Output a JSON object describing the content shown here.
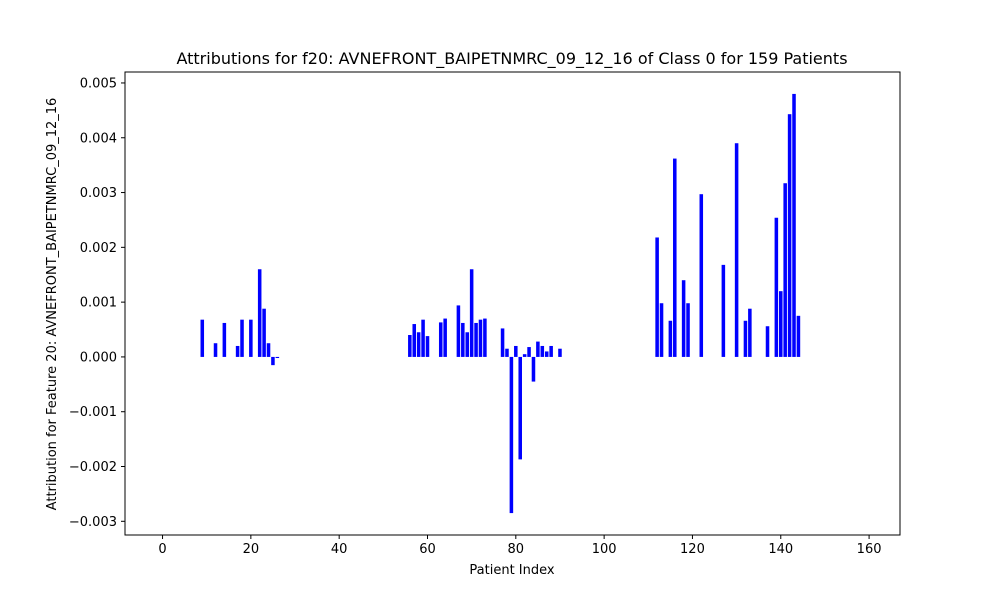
{
  "chart_data": {
    "type": "bar",
    "title": "Attributions for f20: AVNEFRONT_BAIPETNMRC_09_12_16 of Class 0 for 159 Patients",
    "xlabel": "Patient Index",
    "ylabel": "Attribution for Feature 20: AVNEFRONT_BAIPETNMRC_09_12_16",
    "xlim": [
      -8.5,
      167
    ],
    "ylim": [
      -0.00325,
      0.0052
    ],
    "xticks": [
      0,
      20,
      40,
      60,
      80,
      100,
      120,
      140,
      160
    ],
    "xtick_labels": [
      "0",
      "20",
      "40",
      "60",
      "80",
      "100",
      "120",
      "140",
      "160"
    ],
    "yticks": [
      -0.003,
      -0.002,
      -0.001,
      0.0,
      0.001,
      0.002,
      0.003,
      0.004,
      0.005
    ],
    "ytick_labels": [
      "−0.003",
      "−0.002",
      "−0.001",
      "0.000",
      "0.001",
      "0.002",
      "0.003",
      "0.004",
      "0.005"
    ],
    "bar_color": "#0000ff",
    "grid": false,
    "points": [
      [
        9,
        0.00068
      ],
      [
        12,
        0.00025
      ],
      [
        14,
        0.00062
      ],
      [
        17,
        0.0002
      ],
      [
        18,
        0.00068
      ],
      [
        20,
        0.00068
      ],
      [
        22,
        0.0016
      ],
      [
        23,
        0.00088
      ],
      [
        24,
        0.00025
      ],
      [
        25,
        -0.00015
      ],
      [
        26,
        -2e-05
      ],
      [
        56,
        0.0004
      ],
      [
        57,
        0.0006
      ],
      [
        58,
        0.00045
      ],
      [
        59,
        0.00068
      ],
      [
        60,
        0.00038
      ],
      [
        63,
        0.00063
      ],
      [
        64,
        0.0007
      ],
      [
        67,
        0.00094
      ],
      [
        68,
        0.00062
      ],
      [
        69,
        0.00045
      ],
      [
        70,
        0.0016
      ],
      [
        71,
        0.00062
      ],
      [
        72,
        0.00068
      ],
      [
        73,
        0.0007
      ],
      [
        77,
        0.00052
      ],
      [
        78,
        0.00015
      ],
      [
        79,
        -0.00285
      ],
      [
        80,
        0.0002
      ],
      [
        81,
        -0.00187
      ],
      [
        82,
        5e-05
      ],
      [
        83,
        0.00018
      ],
      [
        84,
        -0.00045
      ],
      [
        85,
        0.00028
      ],
      [
        86,
        0.0002
      ],
      [
        87,
        0.0001
      ],
      [
        88,
        0.0002
      ],
      [
        90,
        0.00015
      ],
      [
        112,
        0.00218
      ],
      [
        113,
        0.00098
      ],
      [
        115,
        0.00066
      ],
      [
        116,
        0.00362
      ],
      [
        118,
        0.0014
      ],
      [
        119,
        0.00098
      ],
      [
        122,
        0.00297
      ],
      [
        127,
        0.00168
      ],
      [
        130,
        0.0039
      ],
      [
        132,
        0.00066
      ],
      [
        133,
        0.00088
      ],
      [
        137,
        0.00056
      ],
      [
        139,
        0.00254
      ],
      [
        140,
        0.0012
      ],
      [
        141,
        0.00317
      ],
      [
        142,
        0.00443
      ],
      [
        143,
        0.0048
      ],
      [
        144,
        0.00075
      ]
    ]
  }
}
